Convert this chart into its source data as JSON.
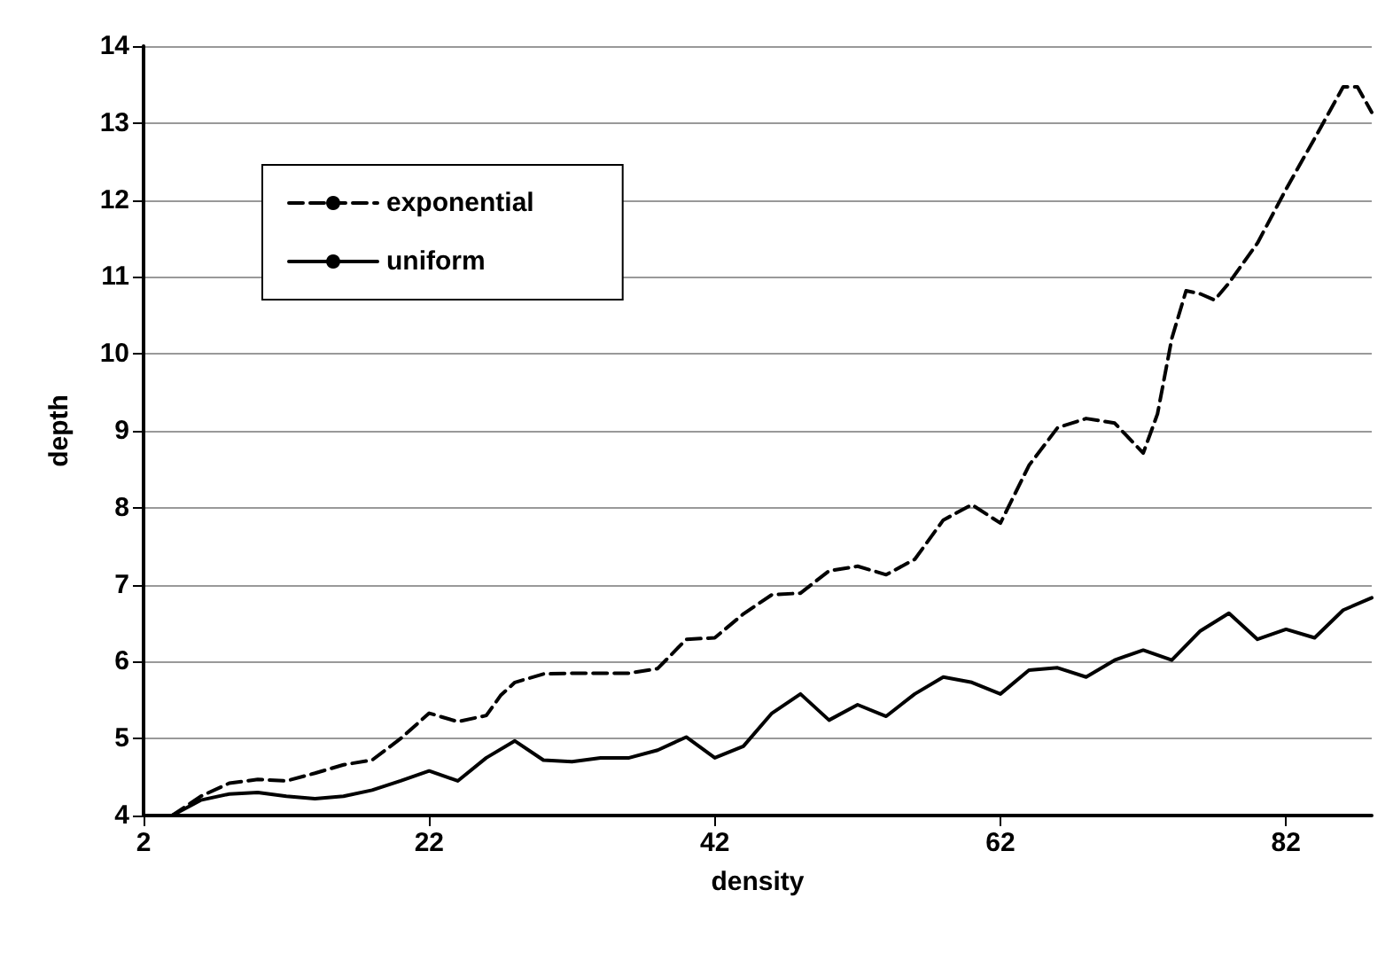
{
  "chart_data": {
    "type": "line",
    "xlabel": "density",
    "ylabel": "depth",
    "xlim": [
      2,
      88
    ],
    "xticks": [
      2,
      22,
      42,
      62,
      82
    ],
    "ylim": [
      4,
      14
    ],
    "yticks": [
      4,
      5,
      6,
      7,
      8,
      9,
      10,
      11,
      12,
      13,
      14
    ],
    "grid": "y",
    "legend": "top left",
    "marker": "none",
    "series": [
      {
        "name": "exponential",
        "color": "#000000",
        "line_style": "dashed",
        "x": [
          4,
          6,
          8,
          10,
          12,
          14,
          16,
          18,
          20,
          22,
          24,
          26,
          27,
          28,
          30,
          32,
          34,
          36,
          38,
          40,
          42,
          44,
          46,
          48,
          50,
          52,
          54,
          56,
          58,
          60,
          62,
          64,
          66,
          68,
          70,
          72,
          73,
          74,
          75,
          76,
          77,
          78,
          80,
          82,
          84,
          86,
          87,
          88
        ],
        "values": [
          4.0,
          4.25,
          4.42,
          4.47,
          4.45,
          4.55,
          4.66,
          4.72,
          5.0,
          5.33,
          5.22,
          5.3,
          5.56,
          5.73,
          5.84,
          5.85,
          5.85,
          5.85,
          5.91,
          6.29,
          6.31,
          6.62,
          6.87,
          6.89,
          7.18,
          7.24,
          7.13,
          7.33,
          7.84,
          8.04,
          7.8,
          8.55,
          9.04,
          9.16,
          9.1,
          8.71,
          9.22,
          10.2,
          10.82,
          10.78,
          10.7,
          10.92,
          11.44,
          12.14,
          12.8,
          13.47,
          13.47,
          13.14
        ]
      },
      {
        "name": "uniform",
        "color": "#000000",
        "line_style": "solid",
        "x": [
          4,
          6,
          8,
          10,
          12,
          14,
          16,
          18,
          20,
          22,
          24,
          26,
          28,
          30,
          32,
          34,
          36,
          38,
          40,
          42,
          44,
          46,
          48,
          50,
          52,
          54,
          56,
          58,
          60,
          62,
          64,
          66,
          68,
          70,
          72,
          74,
          76,
          78,
          80,
          82,
          84,
          86,
          88
        ],
        "values": [
          4.0,
          4.2,
          4.28,
          4.3,
          4.25,
          4.22,
          4.25,
          4.33,
          4.45,
          4.58,
          4.45,
          4.75,
          4.97,
          4.72,
          4.7,
          4.75,
          4.75,
          4.85,
          5.02,
          4.75,
          4.9,
          5.33,
          5.58,
          5.24,
          5.44,
          5.29,
          5.58,
          5.8,
          5.73,
          5.58,
          5.89,
          5.92,
          5.8,
          6.02,
          6.15,
          6.02,
          6.4,
          6.63,
          6.29,
          6.42,
          6.31,
          6.67,
          6.83
        ]
      }
    ]
  }
}
